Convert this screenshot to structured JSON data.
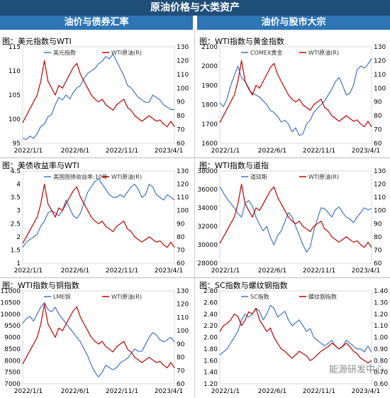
{
  "header": {
    "title": "原油价格与大类资产"
  },
  "sections": {
    "left": "油价与债券汇率",
    "right": "油价与股市大宗"
  },
  "watermark": "能源研发中心",
  "colors": {
    "primary_series": "#4472c4",
    "wti_series": "#c00000",
    "title_bar": "#1f4e79",
    "section_bar": "#2e75b6"
  },
  "chart_data": [
    {
      "type": "line",
      "title": "图：美元指数与WTI",
      "x_ticks": [
        "2022/1/1",
        "2022/6/1",
        "2022/11/1",
        "2023/4/1"
      ],
      "y_left": {
        "ticks": [
          95,
          100,
          105,
          110,
          115
        ],
        "lim": [
          95,
          115
        ]
      },
      "y_right": {
        "ticks": [
          60,
          70,
          80,
          90,
          100,
          110,
          120,
          130
        ],
        "lim": [
          60,
          130
        ]
      },
      "series": [
        {
          "name": "美元指数",
          "axis": "left",
          "color": "#4472c4",
          "values": [
            96.0,
            95.8,
            96.5,
            96.0,
            97.0,
            98.5,
            99.0,
            100.5,
            101.0,
            103.0,
            104.5,
            104.0,
            105.0,
            104.2,
            105.5,
            106.5,
            107.0,
            108.5,
            109.5,
            110.0,
            110.5,
            111.5,
            112.0,
            113.0,
            112.5,
            113.5,
            112.0,
            110.5,
            109.0,
            107.0,
            106.5,
            105.5,
            104.5,
            104.0,
            103.5,
            103.5,
            105.0,
            104.5,
            104.0,
            103.0,
            102.5,
            102.0,
            102.0
          ]
        },
        {
          "name": "WTI原油(R)",
          "axis": "right",
          "color": "#c00000",
          "values": [
            75,
            80,
            85,
            90,
            95,
            105,
            120,
            105,
            100,
            95,
            102,
            100,
            105,
            110,
            115,
            118,
            110,
            105,
            100,
            95,
            92,
            90,
            92,
            88,
            86,
            84,
            88,
            90,
            92,
            86,
            84,
            80,
            78,
            76,
            78,
            80,
            78,
            76,
            77,
            74,
            72,
            76,
            72
          ]
        }
      ]
    },
    {
      "type": "line",
      "title": "图：WTI指数与黄金指数",
      "x_ticks": [
        "2022/1/1",
        "2022/6/1",
        "2022/11/1",
        "2023/4/1"
      ],
      "y_left": {
        "ticks": [
          1600,
          1700,
          1800,
          1900,
          2000,
          2100
        ],
        "lim": [
          1600,
          2100
        ]
      },
      "y_right": {
        "ticks": [
          60,
          70,
          80,
          90,
          100,
          110,
          120,
          130
        ],
        "lim": [
          60,
          130
        ]
      },
      "series": [
        {
          "name": "COMEX黄金",
          "axis": "left",
          "color": "#4472c4",
          "values": [
            1810,
            1790,
            1830,
            1900,
            1950,
            2000,
            1940,
            1920,
            1880,
            1860,
            1850,
            1840,
            1820,
            1800,
            1770,
            1760,
            1740,
            1710,
            1720,
            1700,
            1660,
            1680,
            1640,
            1650,
            1700,
            1720,
            1760,
            1780,
            1800,
            1820,
            1850,
            1880,
            1920,
            1940,
            1900,
            1850,
            1860,
            1900,
            1980,
            2000,
            1990,
            2010,
            2040
          ]
        },
        {
          "name": "WTI原油(R)",
          "axis": "right",
          "color": "#c00000",
          "values": [
            75,
            80,
            85,
            90,
            95,
            105,
            120,
            105,
            100,
            95,
            102,
            100,
            105,
            110,
            115,
            118,
            110,
            105,
            100,
            95,
            92,
            90,
            92,
            88,
            86,
            84,
            88,
            90,
            92,
            86,
            84,
            80,
            78,
            76,
            78,
            80,
            78,
            76,
            77,
            74,
            72,
            76,
            72
          ]
        }
      ]
    },
    {
      "type": "line",
      "title": "图：美债收益率与WTI",
      "x_ticks": [
        "2022/1/1",
        "2022/6/1",
        "2022/11/1",
        "2023/4/1"
      ],
      "y_left": {
        "ticks": [
          1.0,
          1.5,
          2.0,
          2.5,
          3.0,
          3.5,
          4.0,
          4.5
        ],
        "tick_labels": [
          "1",
          "1.5",
          "2",
          "2.5",
          "3",
          "3.5",
          "4",
          "4.5"
        ],
        "lim": [
          1,
          4.5
        ]
      },
      "y_right": {
        "ticks": [
          60,
          70,
          80,
          90,
          100,
          110,
          120,
          130
        ],
        "lim": [
          60,
          130
        ]
      },
      "series": [
        {
          "name": "美国国债收益率:10年",
          "axis": "left",
          "color": "#4472c4",
          "values": [
            1.6,
            1.8,
            1.9,
            2.0,
            2.1,
            2.4,
            2.6,
            2.9,
            3.0,
            2.9,
            2.8,
            3.0,
            3.4,
            3.1,
            2.8,
            2.7,
            2.9,
            3.3,
            3.7,
            3.9,
            4.1,
            4.2,
            4.0,
            3.8,
            3.6,
            3.5,
            3.5,
            3.6,
            3.5,
            3.7,
            3.9,
            4.0,
            3.8,
            3.5,
            3.6,
            4.0,
            3.9,
            3.6,
            3.5,
            3.4,
            3.6,
            3.5,
            3.4
          ]
        },
        {
          "name": "WTI原油(R)",
          "axis": "right",
          "color": "#c00000",
          "values": [
            75,
            80,
            85,
            90,
            95,
            105,
            120,
            105,
            100,
            95,
            102,
            100,
            105,
            110,
            115,
            118,
            110,
            105,
            100,
            95,
            92,
            90,
            92,
            88,
            86,
            84,
            88,
            90,
            92,
            86,
            84,
            80,
            78,
            76,
            78,
            80,
            78,
            76,
            77,
            74,
            72,
            76,
            72
          ]
        }
      ]
    },
    {
      "type": "line",
      "title": "图：WTI指数与道指",
      "x_ticks": [
        "2022/1/1",
        "2022/6/1",
        "2022/11/1",
        "2023/4/1"
      ],
      "y_left": {
        "ticks": [
          28000,
          30000,
          32000,
          34000,
          36000,
          38000
        ],
        "lim": [
          28000,
          38000
        ]
      },
      "y_right": {
        "ticks": [
          60,
          70,
          80,
          90,
          100,
          110,
          120,
          130
        ],
        "lim": [
          60,
          130
        ]
      },
      "series": [
        {
          "name": "道琼斯",
          "axis": "left",
          "color": "#4472c4",
          "values": [
            36300,
            35600,
            35000,
            34500,
            34000,
            33400,
            33000,
            34500,
            34800,
            34200,
            33000,
            32200,
            31500,
            32000,
            30800,
            30000,
            31000,
            31500,
            32500,
            33500,
            33000,
            32000,
            31000,
            30000,
            29200,
            29700,
            31500,
            32800,
            34000,
            33900,
            33500,
            33000,
            33800,
            34100,
            33500,
            33000,
            32800,
            32400,
            33000,
            33500,
            34000,
            33800,
            33900
          ]
        },
        {
          "name": "WTI原油(R)",
          "axis": "right",
          "color": "#c00000",
          "values": [
            75,
            80,
            85,
            90,
            95,
            105,
            120,
            105,
            100,
            95,
            102,
            100,
            105,
            110,
            115,
            118,
            110,
            105,
            100,
            95,
            92,
            90,
            92,
            88,
            86,
            84,
            88,
            90,
            92,
            86,
            84,
            80,
            78,
            76,
            78,
            80,
            78,
            76,
            77,
            74,
            72,
            76,
            72
          ]
        }
      ]
    },
    {
      "type": "line",
      "title": "图：WTI指数与铜指数",
      "x_ticks": [
        "2022/1/1",
        "2022/6/1",
        "2022/11/1",
        "2023/4/1"
      ],
      "y_left": {
        "ticks": [
          7000,
          7500,
          8000,
          8500,
          9000,
          9500,
          10000,
          10500,
          11000
        ],
        "lim": [
          7000,
          11000
        ]
      },
      "y_right": {
        "ticks": [
          60,
          70,
          80,
          90,
          100,
          110,
          120,
          130
        ],
        "lim": [
          60,
          130
        ]
      },
      "series": [
        {
          "name": "LME铜",
          "axis": "left",
          "color": "#4472c4",
          "values": [
            9600,
            9800,
            9900,
            9700,
            10000,
            10300,
            10500,
            10200,
            10100,
            10300,
            10000,
            9800,
            9600,
            9400,
            9200,
            9000,
            8800,
            8500,
            8200,
            7800,
            7500,
            7300,
            7500,
            7800,
            7700,
            7600,
            7700,
            7900,
            8000,
            8100,
            8300,
            8500,
            8400,
            8400,
            8700,
            9000,
            9200,
            9100,
            8900,
            8800,
            8900,
            9000,
            8800
          ]
        },
        {
          "name": "WTI原油(R)",
          "axis": "right",
          "color": "#c00000",
          "values": [
            75,
            80,
            85,
            90,
            95,
            105,
            120,
            105,
            100,
            95,
            102,
            100,
            105,
            110,
            115,
            118,
            110,
            105,
            100,
            95,
            92,
            90,
            92,
            88,
            86,
            84,
            88,
            90,
            92,
            86,
            84,
            80,
            78,
            76,
            78,
            80,
            78,
            76,
            77,
            74,
            72,
            76,
            72
          ]
        }
      ]
    },
    {
      "type": "line",
      "title": "图：SC指数与螺纹钢指数",
      "x_ticks": [
        "2022/1/1",
        "2022/6/1",
        "2022/11/1",
        "2023/4/1"
      ],
      "y_left": {
        "ticks": [
          1.2,
          1.4,
          1.6,
          1.8,
          2.0,
          2.2,
          2.4,
          2.6,
          2.8
        ],
        "tick_labels": [
          "1.20",
          "1.40",
          "1.60",
          "1.80",
          "2.00",
          "2.20",
          "2.40",
          "2.60",
          "2.80"
        ],
        "lim": [
          1.2,
          2.8
        ]
      },
      "y_right": {
        "ticks": [
          0.6,
          0.7,
          0.8,
          0.9,
          1.0,
          1.1,
          1.2,
          1.3,
          1.4
        ],
        "tick_labels": [
          "0.60",
          "0.70",
          "0.80",
          "0.90",
          "1.00",
          "1.10",
          "1.20",
          "1.30",
          "1.40"
        ],
        "lim": [
          0.6,
          1.4
        ]
      },
      "series": [
        {
          "name": "SC指数",
          "axis": "left",
          "color": "#4472c4",
          "values": [
            1.7,
            1.75,
            1.8,
            1.9,
            2.0,
            2.1,
            2.3,
            2.4,
            2.35,
            2.4,
            2.5,
            2.45,
            2.3,
            2.4,
            2.55,
            2.5,
            2.35,
            2.4,
            2.45,
            2.3,
            2.2,
            2.25,
            2.3,
            2.2,
            2.1,
            2.15,
            2.0,
            1.95,
            1.9,
            1.85,
            1.9,
            1.95,
            1.85,
            1.8,
            1.85,
            1.95,
            1.9,
            1.85,
            1.8,
            1.8,
            1.75,
            1.85,
            1.75
          ]
        },
        {
          "name": "螺纹钢指数",
          "axis": "right",
          "color": "#c00000",
          "values": [
            1.05,
            1.1,
            1.12,
            1.15,
            1.2,
            1.18,
            1.1,
            1.15,
            1.22,
            1.2,
            1.25,
            1.15,
            1.1,
            1.05,
            1.08,
            1.0,
            0.95,
            0.9,
            0.88,
            0.85,
            0.82,
            0.85,
            0.88,
            0.86,
            0.84,
            0.8,
            0.82,
            0.85,
            0.88,
            0.9,
            0.92,
            0.95,
            0.93,
            0.9,
            0.92,
            0.95,
            0.92,
            0.88,
            0.86,
            0.82,
            0.8,
            0.78,
            0.8
          ]
        }
      ]
    }
  ]
}
